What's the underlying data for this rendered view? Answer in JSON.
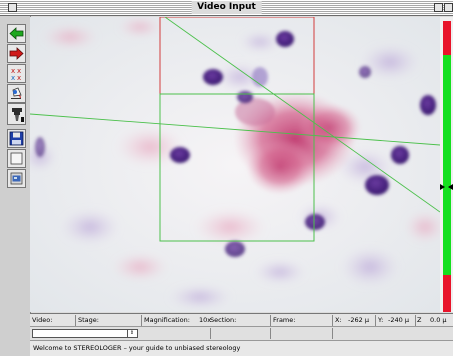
{
  "window": {
    "title": "Video Input"
  },
  "toolbar": {
    "tools": [
      {
        "name": "back-arrow-icon"
      },
      {
        "name": "forward-arrow-icon"
      },
      {
        "name": "markers-icon"
      },
      {
        "name": "fill-icon"
      },
      {
        "name": "probe-icon"
      },
      {
        "name": "save-icon"
      },
      {
        "name": "blank-panel-icon"
      },
      {
        "name": "video-capture-icon"
      }
    ]
  },
  "status": {
    "video_label": "Video:",
    "stage_label": "Stage:",
    "magnification_label": "Magnification:",
    "magnification_value": "10x",
    "section_label": "Section:",
    "frame_label": "Frame:",
    "x_label": "X:",
    "x_value": "-262 µ",
    "y_label": "Y:",
    "y_value": "-240 µ",
    "z_label": "Z",
    "z_value": "0.0 µ"
  },
  "message": "Welcome to STEREOLOGER – your guide to unbiased stereology",
  "colors": {
    "scale_red": "#e8142a",
    "scale_green": "#14e01e",
    "frame_red": "#d23c3c",
    "frame_green": "#4cc04c"
  }
}
